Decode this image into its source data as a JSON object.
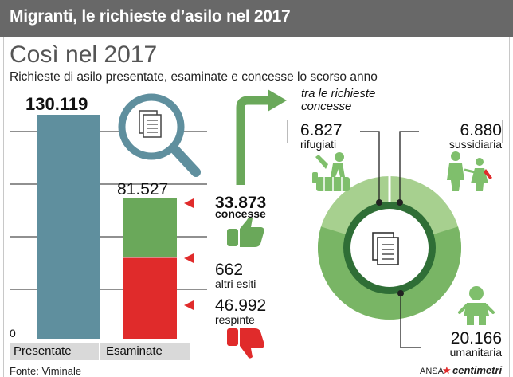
{
  "header": {
    "title": "Migranti, le richieste d’asilo nel 2017"
  },
  "title": "Così nel 2017",
  "subtitle": "Richieste di asilo presentate, esaminate e concesse lo scorso anno",
  "source": "Fonte: Viminale",
  "credit": {
    "agency": "ANSA",
    "brand": "centimetri"
  },
  "colors": {
    "presentate": "#5f8f9e",
    "concesse": "#6aa85a",
    "altri_esiti": "#d8d8d8",
    "respinte": "#e02b2b",
    "donut_inner": "#2f6e36",
    "donut_light": "#a7d08f",
    "donut_mid": "#79b565",
    "icon_green": "#7fbf6c"
  },
  "chart_data": [
    {
      "type": "bar",
      "categories": [
        "Presentate",
        "Esaminate"
      ],
      "series": [
        {
          "name": "",
          "values": [
            130119,
            0
          ]
        },
        {
          "name": "respinte",
          "values": [
            0,
            46992
          ]
        },
        {
          "name": "altri esiti",
          "values": [
            0,
            662
          ]
        },
        {
          "name": "concesse",
          "values": [
            0,
            33873
          ]
        }
      ],
      "totals": [
        "130.119",
        "81.527"
      ],
      "segments": [
        {
          "value": "33.873",
          "label": "concesse"
        },
        {
          "value": "662",
          "label": "altri esiti"
        },
        {
          "value": "46.992",
          "label": "respinte"
        }
      ],
      "y_tick": "0",
      "ylim": [
        0,
        130119
      ],
      "grid": true
    },
    {
      "type": "pie",
      "label": "tra le richieste concesse",
      "slices": [
        {
          "label": "rifugiati",
          "value": 6827,
          "display": "6.827"
        },
        {
          "label": "sussidiaria",
          "value": 6880,
          "display": "6.880"
        },
        {
          "label": "umanitaria",
          "value": 20166,
          "display": "20.166"
        }
      ]
    }
  ]
}
